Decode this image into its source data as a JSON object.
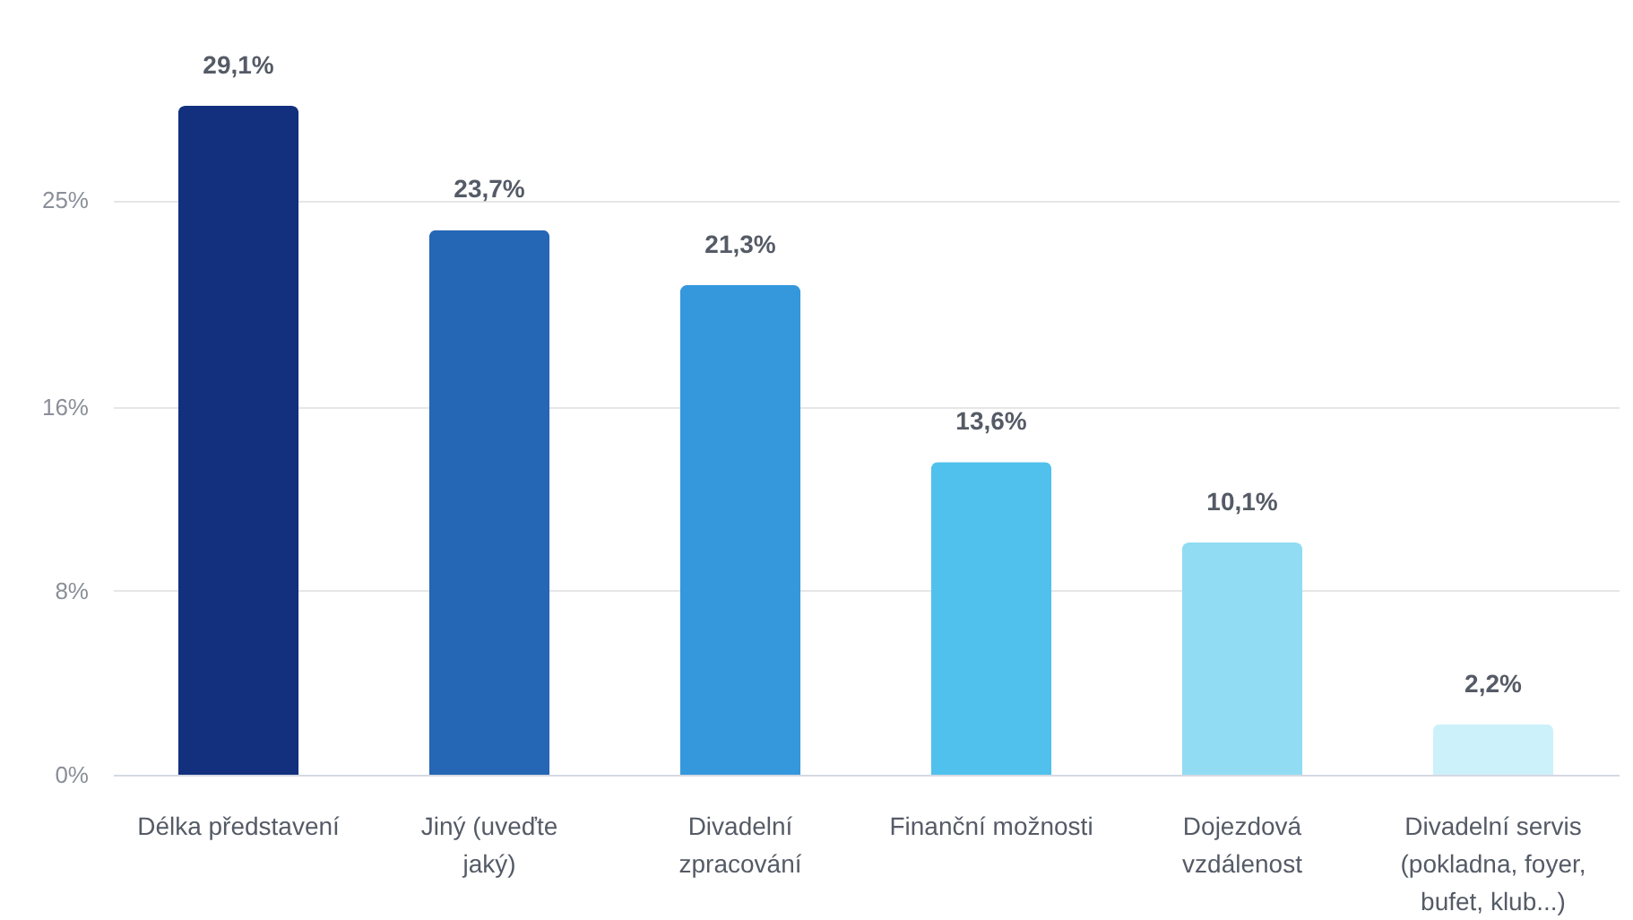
{
  "chart_data": {
    "type": "bar",
    "categories": [
      "Délka představení",
      "Jiný (uveďte jaký)",
      "Divadelní zpracování",
      "Finanční možnosti",
      "Dojezdová vzdálenost",
      "Divadelní servis (pokladna, foyer, bufet, klub...)"
    ],
    "values": [
      29.1,
      23.7,
      21.3,
      13.6,
      10.1,
      2.2
    ],
    "colors": [
      "#12307e",
      "#2566b5",
      "#3597dc",
      "#50c1ec",
      "#91dcf3",
      "#cdf1fa"
    ],
    "value_labels": [
      "29,1%",
      "23,7%",
      "21,3%",
      "13,6%",
      "10,1%",
      "2,2%"
    ],
    "ylim": [
      0,
      29.1
    ],
    "yticks": [
      {
        "value": 0,
        "label": "0%"
      },
      {
        "value": 8,
        "label": "8%"
      },
      {
        "value": 16,
        "label": "16%"
      },
      {
        "value": 25,
        "label": "25%"
      }
    ],
    "grid": "y"
  }
}
